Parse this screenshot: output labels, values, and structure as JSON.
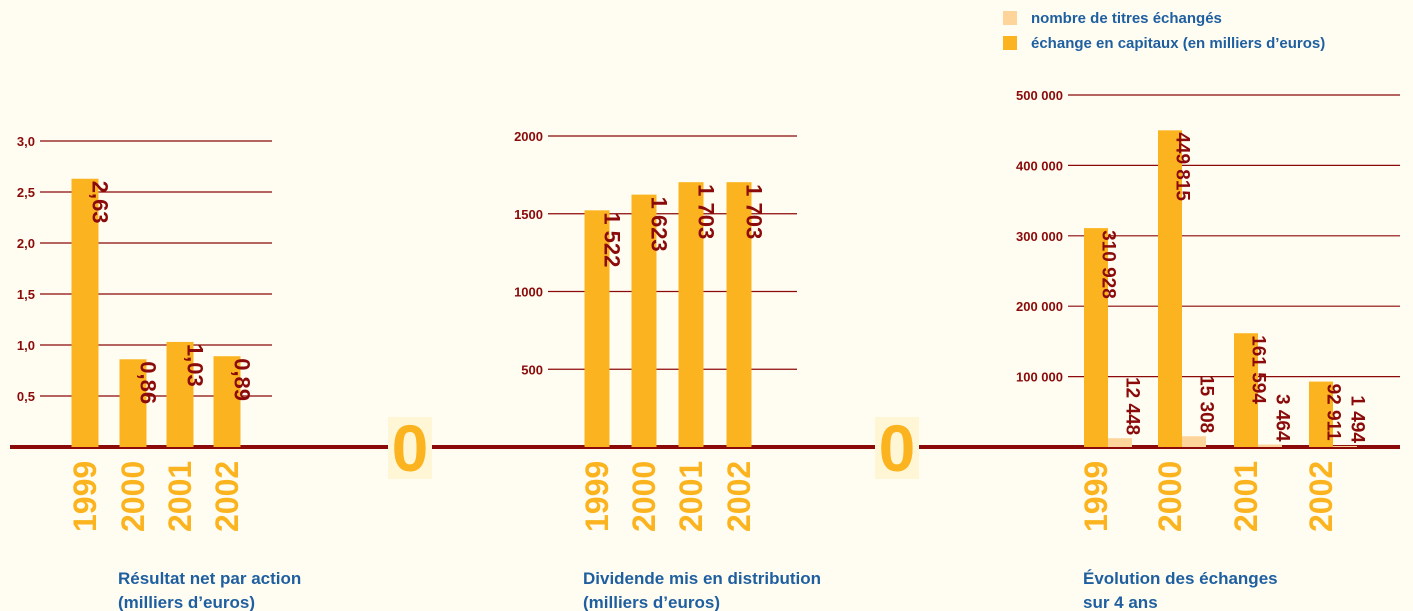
{
  "chart_data": [
    {
      "type": "bar",
      "title": [
        "Résultat net par action",
        "(milliers d’euros)"
      ],
      "categories": [
        "1999",
        "2000",
        "2001",
        "2002"
      ],
      "values": [
        2.63,
        0.86,
        1.03,
        0.89
      ],
      "value_labels": [
        "2,63",
        "0,86",
        "1,03",
        "0,89"
      ],
      "color": "#fbb41f",
      "ylim": [
        0,
        3.0
      ],
      "yticks": [
        {
          "value": 0.5,
          "label": "0,5"
        },
        {
          "value": 1.0,
          "label": "1,0"
        },
        {
          "value": 1.5,
          "label": "1,5"
        },
        {
          "value": 2.0,
          "label": "2,0"
        },
        {
          "value": 2.5,
          "label": "2,5"
        },
        {
          "value": 3.0,
          "label": "3,0"
        }
      ],
      "grid": true
    },
    {
      "type": "bar",
      "title": [
        "Dividende mis en distribution",
        "(milliers d’euros)"
      ],
      "categories": [
        "1999",
        "2000",
        "2001",
        "2002"
      ],
      "values": [
        1522,
        1623,
        1703,
        1703
      ],
      "value_labels": [
        "1 522",
        "1 623",
        "1 703",
        "1 703"
      ],
      "color": "#fbb41f",
      "ylim": [
        0,
        2000
      ],
      "yticks": [
        0,
        500,
        1000,
        1500,
        2000
      ],
      "grid": true
    },
    {
      "type": "grouped_bar",
      "title": [
        "Évolution des échanges",
        "sur 4 ans"
      ],
      "categories": [
        "1999",
        "2000",
        "2001",
        "2002"
      ],
      "series": [
        {
          "name": "nombre de titres échangés",
          "color": "#fdd49a",
          "values": [
            12448,
            15308,
            3464,
            1494
          ],
          "value_labels": [
            "12 448",
            "15 308",
            "3 464",
            "1 494"
          ]
        },
        {
          "name": "échange en capitaux (en milliers d’euros)",
          "color": "#fbb41f",
          "values": [
            310928,
            449815,
            161594,
            92911
          ],
          "value_labels": [
            "310 928",
            "449 815",
            "161 594",
            "92 911"
          ]
        }
      ],
      "ylim": [
        0,
        500000
      ],
      "yticks": [
        0,
        {
          "value": 100000,
          "label": "100 000"
        },
        {
          "value": 200000,
          "label": "200 000"
        },
        {
          "value": 300000,
          "label": "300 000"
        },
        {
          "value": 400000,
          "label": "400 000"
        },
        {
          "value": 500000,
          "label": "500 000"
        }
      ],
      "grid": true,
      "legend": "top-right"
    }
  ]
}
